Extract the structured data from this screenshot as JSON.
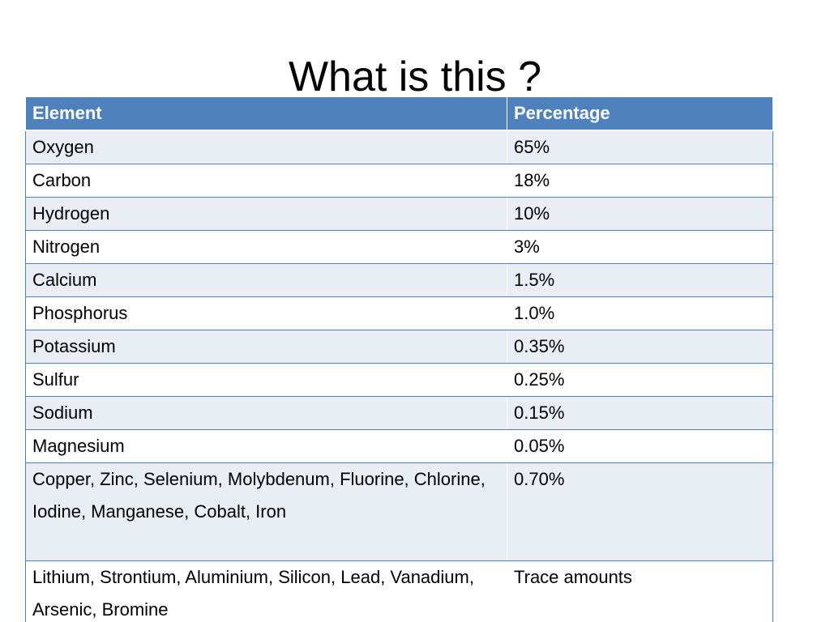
{
  "slide": {
    "title": "What is this ?"
  },
  "table": {
    "headers": [
      "Element",
      "Percentage"
    ],
    "rows": [
      {
        "element": "Oxygen",
        "percentage": "65%"
      },
      {
        "element": "Carbon",
        "percentage": "18%"
      },
      {
        "element": "Hydrogen",
        "percentage": "10%"
      },
      {
        "element": "Nitrogen",
        "percentage": "3%"
      },
      {
        "element": "Calcium",
        "percentage": "1.5%"
      },
      {
        "element": "Phosphorus",
        "percentage": "1.0%"
      },
      {
        "element": "Potassium",
        "percentage": "0.35%"
      },
      {
        "element": "Sulfur",
        "percentage": "0.25%"
      },
      {
        "element": "Sodium",
        "percentage": "0.15%"
      },
      {
        "element": "Magnesium",
        "percentage": "0.05%"
      },
      {
        "element": "Copper, Zinc, Selenium, Molybdenum, Fluorine, Chlorine, Iodine, Manganese, Cobalt, Iron",
        "percentage": "0.70%"
      },
      {
        "element": "Lithium, Strontium, Aluminium, Silicon, Lead, Vanadium, Arsenic, Bromine",
        "percentage": "Trace amounts"
      }
    ]
  },
  "colors": {
    "header_fill": "#4f81bd",
    "band_fill": "#e9edf4",
    "row_fill": "#ffffff",
    "border": "#4f81bd"
  }
}
